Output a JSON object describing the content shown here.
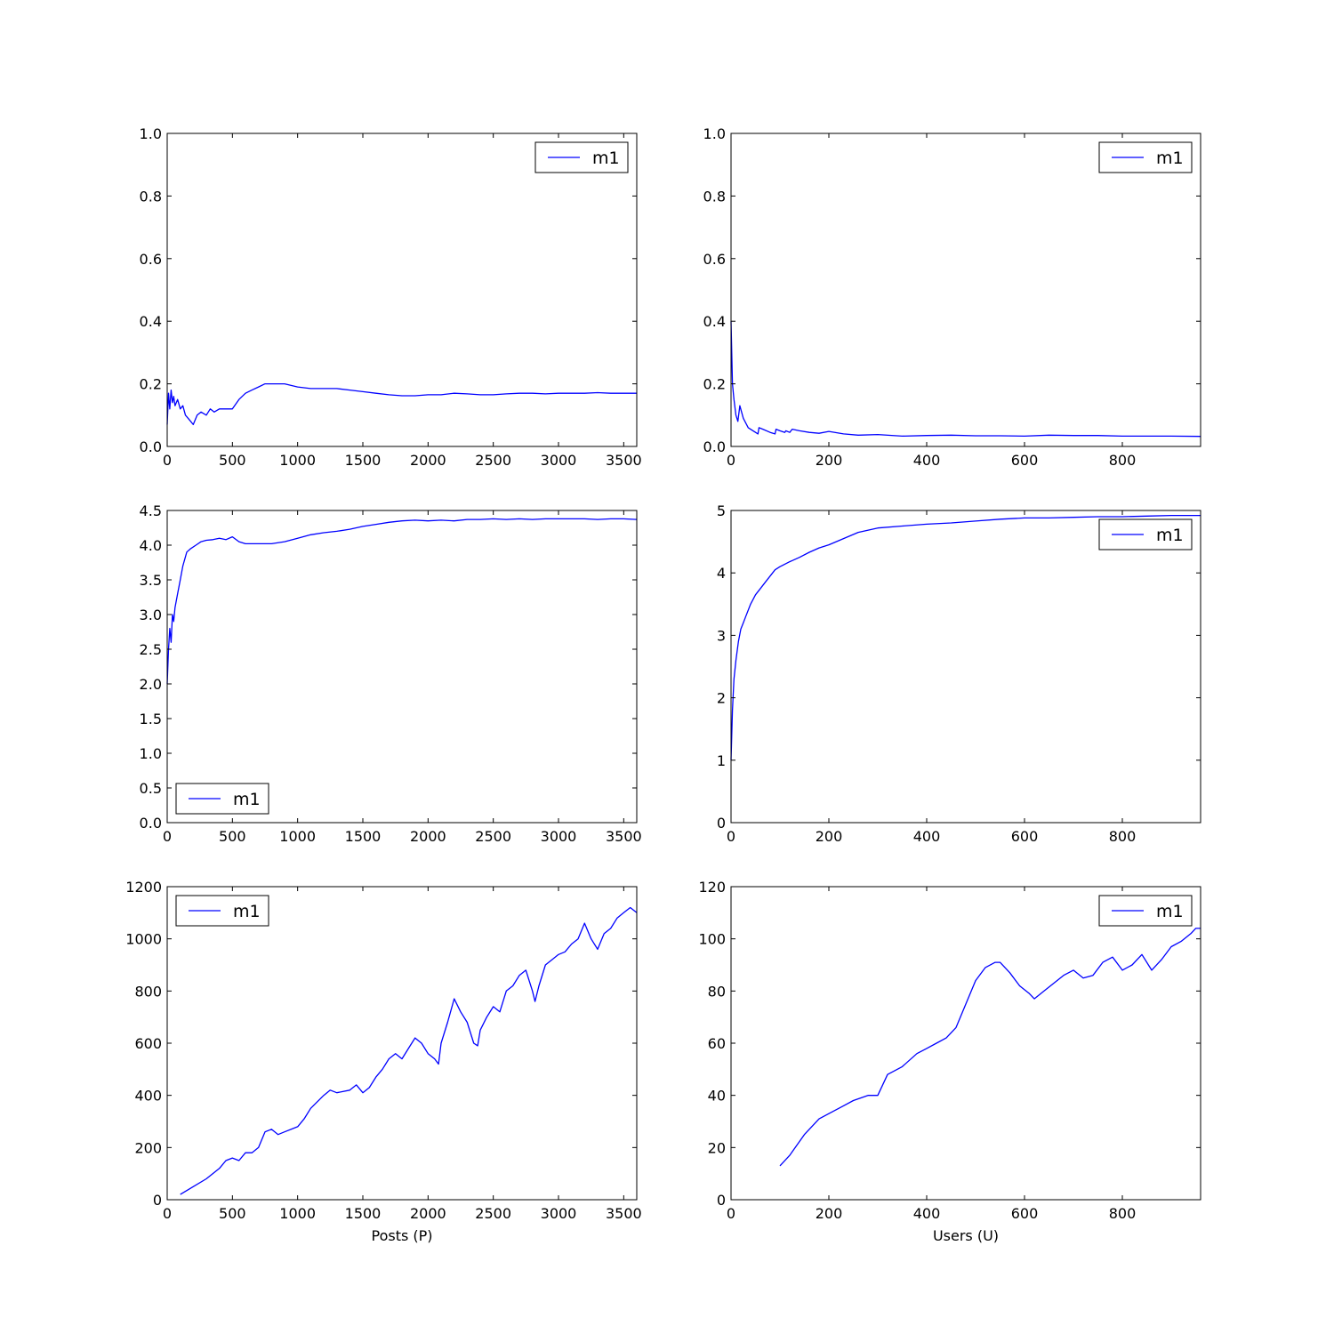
{
  "line_color": "#0000ff",
  "chart_data": [
    {
      "type": "line",
      "xlim": [
        0,
        3600
      ],
      "ylim": [
        0,
        1.0
      ],
      "xticks": [
        "0",
        "500",
        "1000",
        "1500",
        "2000",
        "2500",
        "3000",
        "3500"
      ],
      "xtick_values": [
        0,
        500,
        1000,
        1500,
        2000,
        2500,
        3000,
        3500
      ],
      "yticks": [
        "0.0",
        "0.2",
        "0.4",
        "0.6",
        "0.8",
        "1.0"
      ],
      "ytick_values": [
        0,
        0.2,
        0.4,
        0.6,
        0.8,
        1.0
      ],
      "xlabel": "",
      "ylabel": "",
      "legend_position": "upper-right",
      "series": [
        {
          "name": "m1",
          "x": [
            0,
            10,
            20,
            30,
            40,
            50,
            60,
            80,
            100,
            120,
            140,
            160,
            180,
            200,
            230,
            260,
            300,
            330,
            360,
            400,
            450,
            500,
            550,
            600,
            650,
            700,
            750,
            800,
            900,
            1000,
            1100,
            1200,
            1300,
            1400,
            1500,
            1600,
            1700,
            1800,
            1900,
            2000,
            2100,
            2200,
            2300,
            2400,
            2500,
            2600,
            2700,
            2800,
            2900,
            3000,
            3100,
            3200,
            3300,
            3400,
            3500,
            3600
          ],
          "y": [
            0.07,
            0.17,
            0.12,
            0.18,
            0.14,
            0.16,
            0.13,
            0.15,
            0.12,
            0.13,
            0.1,
            0.09,
            0.08,
            0.07,
            0.1,
            0.11,
            0.1,
            0.12,
            0.11,
            0.12,
            0.12,
            0.12,
            0.15,
            0.17,
            0.18,
            0.19,
            0.2,
            0.2,
            0.2,
            0.19,
            0.185,
            0.185,
            0.185,
            0.18,
            0.175,
            0.17,
            0.165,
            0.162,
            0.162,
            0.165,
            0.165,
            0.17,
            0.168,
            0.165,
            0.165,
            0.168,
            0.17,
            0.17,
            0.168,
            0.17,
            0.17,
            0.17,
            0.172,
            0.17,
            0.17,
            0.17
          ]
        }
      ]
    },
    {
      "type": "line",
      "xlim": [
        0,
        960
      ],
      "ylim": [
        0,
        1.0
      ],
      "xticks": [
        "0",
        "200",
        "400",
        "600",
        "800"
      ],
      "xtick_values": [
        0,
        200,
        400,
        600,
        800
      ],
      "yticks": [
        "0.0",
        "0.2",
        "0.4",
        "0.6",
        "0.8",
        "1.0"
      ],
      "ytick_values": [
        0,
        0.2,
        0.4,
        0.6,
        0.8,
        1.0
      ],
      "xlabel": "",
      "ylabel": "",
      "legend_position": "upper-right",
      "series": [
        {
          "name": "m1",
          "x": [
            0,
            3,
            6,
            10,
            14,
            18,
            25,
            35,
            45,
            55,
            57,
            65,
            80,
            90,
            92,
            100,
            110,
            112,
            120,
            125,
            140,
            160,
            180,
            200,
            230,
            260,
            300,
            350,
            400,
            450,
            500,
            550,
            600,
            650,
            700,
            750,
            800,
            850,
            900,
            960
          ],
          "y": [
            0.4,
            0.2,
            0.15,
            0.1,
            0.08,
            0.13,
            0.09,
            0.06,
            0.05,
            0.04,
            0.06,
            0.055,
            0.045,
            0.04,
            0.055,
            0.05,
            0.045,
            0.05,
            0.045,
            0.055,
            0.05,
            0.045,
            0.042,
            0.048,
            0.04,
            0.036,
            0.038,
            0.033,
            0.035,
            0.036,
            0.034,
            0.034,
            0.033,
            0.036,
            0.035,
            0.035,
            0.033,
            0.033,
            0.033,
            0.032
          ]
        }
      ]
    },
    {
      "type": "line",
      "xlim": [
        0,
        3600
      ],
      "ylim": [
        0,
        4.5
      ],
      "xticks": [
        "0",
        "500",
        "1000",
        "1500",
        "2000",
        "2500",
        "3000",
        "3500"
      ],
      "xtick_values": [
        0,
        500,
        1000,
        1500,
        2000,
        2500,
        3000,
        3500
      ],
      "yticks": [
        "0.0",
        "0.5",
        "1.0",
        "1.5",
        "2.0",
        "2.5",
        "3.0",
        "3.5",
        "4.0",
        "4.5"
      ],
      "ytick_values": [
        0,
        0.5,
        1.0,
        1.5,
        2.0,
        2.5,
        3.0,
        3.5,
        4.0,
        4.5
      ],
      "xlabel": "",
      "ylabel": "",
      "legend_position": "lower-left",
      "series": [
        {
          "name": "m1",
          "x": [
            0,
            10,
            20,
            30,
            40,
            50,
            60,
            80,
            100,
            120,
            150,
            180,
            220,
            260,
            300,
            350,
            400,
            450,
            500,
            550,
            600,
            700,
            800,
            900,
            1000,
            1100,
            1200,
            1300,
            1400,
            1500,
            1600,
            1700,
            1800,
            1900,
            2000,
            2100,
            2200,
            2300,
            2400,
            2500,
            2600,
            2700,
            2800,
            2900,
            3000,
            3100,
            3200,
            3300,
            3400,
            3500,
            3600
          ],
          "y": [
            2.0,
            2.5,
            2.8,
            2.6,
            3.0,
            2.9,
            3.1,
            3.3,
            3.5,
            3.7,
            3.9,
            3.95,
            4.0,
            4.05,
            4.07,
            4.08,
            4.1,
            4.08,
            4.12,
            4.05,
            4.02,
            4.02,
            4.02,
            4.05,
            4.1,
            4.15,
            4.18,
            4.2,
            4.23,
            4.27,
            4.3,
            4.33,
            4.35,
            4.36,
            4.35,
            4.36,
            4.35,
            4.37,
            4.37,
            4.38,
            4.37,
            4.38,
            4.37,
            4.38,
            4.38,
            4.38,
            4.38,
            4.37,
            4.38,
            4.38,
            4.37
          ]
        }
      ]
    },
    {
      "type": "line",
      "xlim": [
        0,
        960
      ],
      "ylim": [
        0,
        5
      ],
      "xticks": [
        "0",
        "200",
        "400",
        "600",
        "800"
      ],
      "xtick_values": [
        0,
        200,
        400,
        600,
        800
      ],
      "yticks": [
        "0",
        "1",
        "2",
        "3",
        "4",
        "5"
      ],
      "ytick_values": [
        0,
        1,
        2,
        3,
        4,
        5
      ],
      "xlabel": "",
      "ylabel": "",
      "legend_position": "upper-right",
      "series": [
        {
          "name": "m1",
          "x": [
            0,
            3,
            6,
            10,
            15,
            20,
            25,
            30,
            40,
            50,
            60,
            70,
            80,
            90,
            100,
            120,
            140,
            160,
            180,
            200,
            230,
            260,
            300,
            350,
            400,
            450,
            500,
            550,
            600,
            650,
            700,
            750,
            800,
            850,
            900,
            960
          ],
          "y": [
            1.0,
            1.8,
            2.3,
            2.6,
            2.9,
            3.1,
            3.2,
            3.3,
            3.5,
            3.65,
            3.75,
            3.85,
            3.95,
            4.05,
            4.1,
            4.18,
            4.25,
            4.33,
            4.4,
            4.45,
            4.55,
            4.65,
            4.72,
            4.75,
            4.78,
            4.8,
            4.83,
            4.86,
            4.88,
            4.88,
            4.89,
            4.9,
            4.9,
            4.91,
            4.92,
            4.92
          ]
        }
      ]
    },
    {
      "type": "line",
      "xlim": [
        0,
        3600
      ],
      "ylim": [
        0,
        1200
      ],
      "xticks": [
        "0",
        "500",
        "1000",
        "1500",
        "2000",
        "2500",
        "3000",
        "3500"
      ],
      "xtick_values": [
        0,
        500,
        1000,
        1500,
        2000,
        2500,
        3000,
        3500
      ],
      "yticks": [
        "0",
        "200",
        "400",
        "600",
        "800",
        "1000",
        "1200"
      ],
      "ytick_values": [
        0,
        200,
        400,
        600,
        800,
        1000,
        1200
      ],
      "xlabel": "Posts (P)",
      "ylabel": "",
      "legend_position": "upper-left",
      "series": [
        {
          "name": "m1",
          "x": [
            100,
            200,
            300,
            400,
            450,
            500,
            550,
            600,
            650,
            700,
            750,
            800,
            850,
            900,
            1000,
            1050,
            1100,
            1200,
            1250,
            1300,
            1400,
            1450,
            1500,
            1550,
            1600,
            1650,
            1700,
            1750,
            1800,
            1850,
            1900,
            1950,
            2000,
            2050,
            2080,
            2100,
            2150,
            2200,
            2250,
            2300,
            2350,
            2380,
            2400,
            2450,
            2500,
            2550,
            2600,
            2650,
            2700,
            2750,
            2800,
            2820,
            2850,
            2900,
            2950,
            3000,
            3050,
            3100,
            3150,
            3200,
            3250,
            3300,
            3350,
            3400,
            3450,
            3500,
            3550,
            3600
          ],
          "y": [
            20,
            50,
            80,
            120,
            150,
            160,
            150,
            180,
            180,
            200,
            260,
            270,
            250,
            260,
            280,
            310,
            350,
            400,
            420,
            410,
            420,
            440,
            410,
            430,
            470,
            500,
            540,
            560,
            540,
            580,
            620,
            600,
            560,
            540,
            520,
            600,
            680,
            770,
            720,
            680,
            600,
            590,
            650,
            700,
            740,
            720,
            800,
            820,
            860,
            880,
            800,
            760,
            820,
            900,
            920,
            940,
            950,
            980,
            1000,
            1060,
            1000,
            960,
            1020,
            1040,
            1080,
            1100,
            1120,
            1100
          ]
        }
      ]
    },
    {
      "type": "line",
      "xlim": [
        0,
        960
      ],
      "ylim": [
        0,
        120
      ],
      "xticks": [
        "0",
        "200",
        "400",
        "600",
        "800"
      ],
      "xtick_values": [
        0,
        200,
        400,
        600,
        800
      ],
      "yticks": [
        "0",
        "20",
        "40",
        "60",
        "80",
        "100",
        "120"
      ],
      "ytick_values": [
        0,
        20,
        40,
        60,
        80,
        100,
        120
      ],
      "xlabel": "Users (U)",
      "ylabel": "",
      "legend_position": "upper-right",
      "series": [
        {
          "name": "m1",
          "x": [
            100,
            120,
            150,
            180,
            200,
            230,
            250,
            280,
            300,
            320,
            350,
            380,
            400,
            420,
            440,
            460,
            480,
            500,
            520,
            540,
            550,
            570,
            590,
            610,
            620,
            640,
            660,
            680,
            700,
            720,
            740,
            760,
            780,
            800,
            820,
            840,
            860,
            880,
            900,
            920,
            940,
            950,
            960
          ],
          "y": [
            13,
            17,
            25,
            31,
            33,
            36,
            38,
            40,
            40,
            48,
            51,
            56,
            58,
            60,
            62,
            66,
            75,
            84,
            89,
            91,
            91,
            87,
            82,
            79,
            77,
            80,
            83,
            86,
            88,
            85,
            86,
            91,
            93,
            88,
            90,
            94,
            88,
            92,
            97,
            99,
            102,
            104,
            104
          ]
        }
      ]
    }
  ]
}
